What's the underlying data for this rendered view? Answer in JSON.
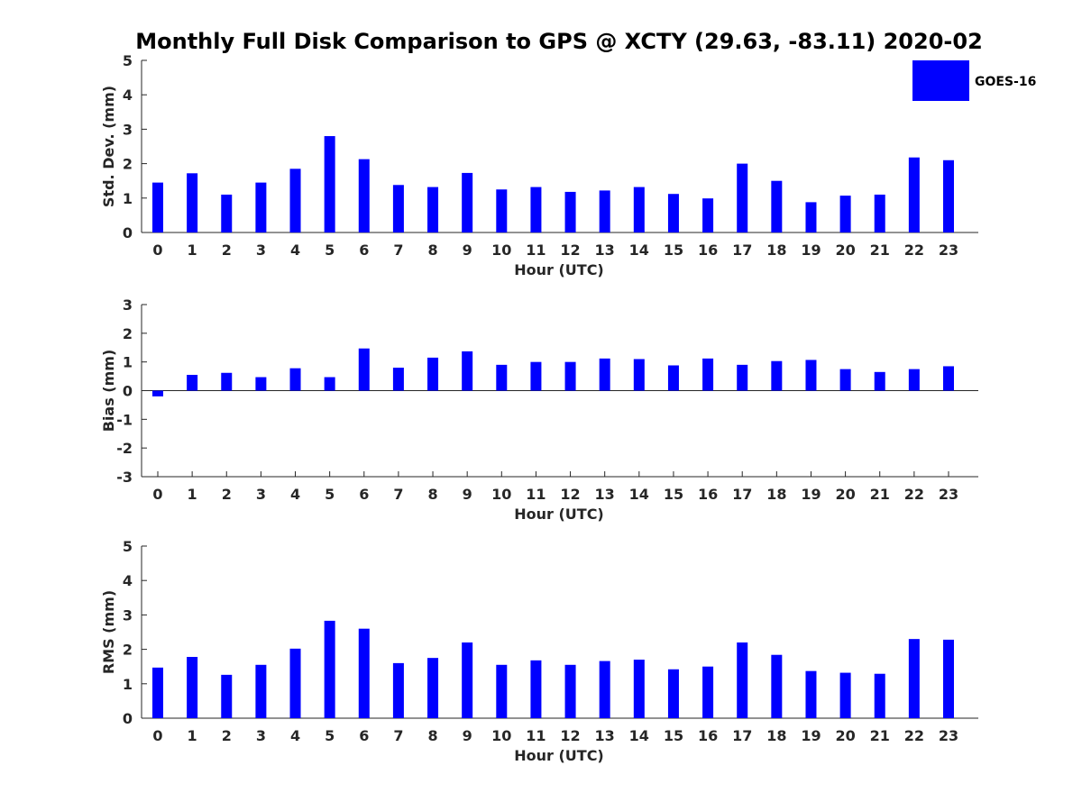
{
  "chart_data": {
    "type": "bar",
    "title": "Monthly Full Disk Comparison to GPS @ XCTY (29.63, -83.11) 2020-02",
    "legend": {
      "label": "GOES-16",
      "color": "#0000ff",
      "placement": "top-right"
    },
    "bar_color": "#0000ff",
    "categories": [
      "0",
      "1",
      "2",
      "3",
      "4",
      "5",
      "6",
      "7",
      "8",
      "9",
      "10",
      "11",
      "12",
      "13",
      "14",
      "15",
      "16",
      "17",
      "18",
      "19",
      "20",
      "21",
      "22",
      "23"
    ],
    "panels": [
      {
        "id": "stddev",
        "ylabel": "Std. Dev. (mm)",
        "xlabel": "Hour (UTC)",
        "ylim": [
          0,
          5
        ],
        "yticks": [
          0,
          1,
          2,
          3,
          4,
          5
        ],
        "values": [
          1.45,
          1.72,
          1.1,
          1.45,
          1.85,
          2.8,
          2.13,
          1.38,
          1.32,
          1.73,
          1.25,
          1.32,
          1.18,
          1.22,
          1.32,
          1.12,
          0.99,
          2.0,
          1.5,
          0.88,
          1.07,
          1.1,
          2.18,
          2.1
        ]
      },
      {
        "id": "bias",
        "ylabel": "Bias (mm)",
        "xlabel": "Hour (UTC)",
        "ylim": [
          -3,
          3
        ],
        "yticks": [
          -3,
          -2,
          -1,
          0,
          1,
          2,
          3
        ],
        "values": [
          -0.2,
          0.55,
          0.62,
          0.47,
          0.78,
          0.47,
          1.47,
          0.8,
          1.15,
          1.37,
          0.9,
          1.0,
          1.0,
          1.12,
          1.1,
          0.88,
          1.12,
          0.9,
          1.03,
          1.07,
          0.75,
          0.65,
          0.75,
          0.85
        ]
      },
      {
        "id": "rms",
        "ylabel": "RMS (mm)",
        "xlabel": "Hour (UTC)",
        "ylim": [
          0,
          5
        ],
        "yticks": [
          0,
          1,
          2,
          3,
          4,
          5
        ],
        "values": [
          1.47,
          1.78,
          1.26,
          1.55,
          2.02,
          2.83,
          2.6,
          1.6,
          1.75,
          2.2,
          1.55,
          1.68,
          1.55,
          1.66,
          1.7,
          1.42,
          1.5,
          2.2,
          1.84,
          1.37,
          1.32,
          1.29,
          2.3,
          2.28
        ]
      }
    ]
  }
}
